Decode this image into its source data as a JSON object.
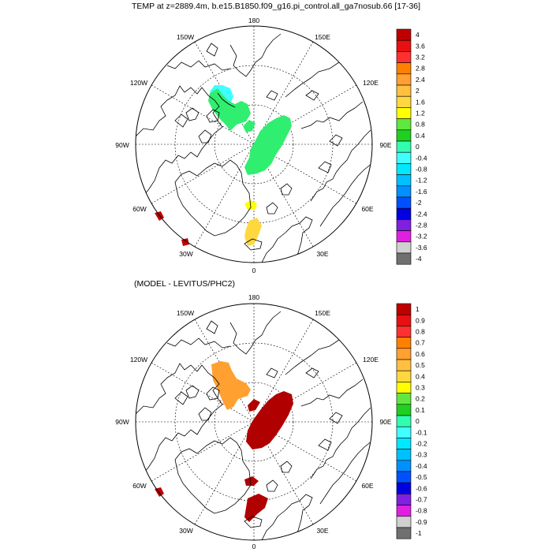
{
  "title": "TEMP at z=2889.4m, b.e15.B1850.f09_g16.pi_control.all_ga7nosub.66 [17-36]",
  "subtitle": "(MODEL - LEVITUS/PHC2)",
  "longitude_labels": {
    "180": "180",
    "150E": "150E",
    "120E": "120E",
    "90E": "90E",
    "60E": "60E",
    "30E": "30E",
    "0": "0",
    "30W": "30W",
    "60W": "60W",
    "90W": "90W",
    "120W": "120W",
    "150W": "150W"
  },
  "top_colorbar": {
    "labels": [
      "4",
      "3.6",
      "3.2",
      "2.8",
      "2.4",
      "2",
      "1.6",
      "1.2",
      "0.8",
      "0.4",
      "0",
      "-0.4",
      "-0.8",
      "-1.2",
      "-1.6",
      "-2",
      "-2.4",
      "-2.8",
      "-3.2",
      "-3.6",
      "-4"
    ],
    "colors": [
      "#c00000",
      "#e81010",
      "#ff3030",
      "#ff8000",
      "#ffa030",
      "#ffc040",
      "#ffd840",
      "#ffff00",
      "#60e840",
      "#20d020",
      "#30ffb0",
      "#40ffff",
      "#00e8ff",
      "#00c0ff",
      "#0090ff",
      "#0050ff",
      "#0000e0",
      "#8020e0",
      "#e020e0",
      "#d0d0d0",
      "#707070"
    ]
  },
  "bottom_colorbar": {
    "labels": [
      "1",
      "0.9",
      "0.8",
      "0.7",
      "0.6",
      "0.5",
      "0.4",
      "0.3",
      "0.2",
      "0.1",
      "0",
      "-0.1",
      "-0.2",
      "-0.3",
      "-0.4",
      "-0.5",
      "-0.6",
      "-0.7",
      "-0.8",
      "-0.9",
      "-1"
    ],
    "colors": [
      "#c00000",
      "#e81010",
      "#ff3030",
      "#ff8000",
      "#ffa030",
      "#ffc040",
      "#ffd840",
      "#ffff00",
      "#60e840",
      "#20d020",
      "#30ffb0",
      "#40ffff",
      "#00e8ff",
      "#00c0ff",
      "#0090ff",
      "#0050ff",
      "#0000e0",
      "#8020e0",
      "#e020e0",
      "#d0d0d0",
      "#707070"
    ]
  },
  "top_field_colors": {
    "canada_basin": "#30ee70",
    "canada_basin_edge": "#40ffff",
    "eurasian_basin": "#30ee70",
    "fram_strait": "#ffff00",
    "greenland_sea": "#ffd840",
    "labrador": "#c00000"
  },
  "bottom_field_colors": {
    "canada_basin": "#ffa030",
    "eurasian_basin": "#b00000",
    "labrador": "#c00000"
  }
}
